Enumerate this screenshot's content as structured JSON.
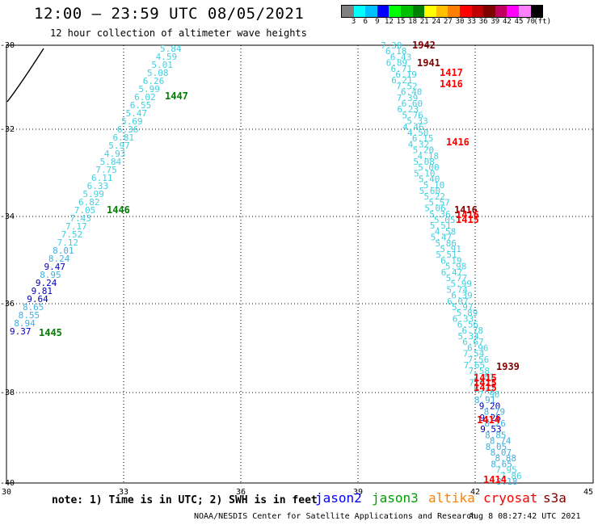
{
  "header": {
    "title": "12:00 – 23:59 UTC 08/05/2021",
    "subtitle": "12 hour collection of altimeter wave heights"
  },
  "colorbar": {
    "colors": [
      "#808080",
      "#00ffff",
      "#00c0ff",
      "#0000ff",
      "#00ff00",
      "#00c000",
      "#008000",
      "#ffff00",
      "#ffc000",
      "#ff8000",
      "#ff0000",
      "#c00000",
      "#800000",
      "#c00060",
      "#ff00ff",
      "#ff80ff",
      "#000000"
    ],
    "labels": [
      "3",
      "6",
      "9",
      "12",
      "15",
      "18",
      "21",
      "24",
      "27",
      "30",
      "33",
      "36",
      "39",
      "42",
      "45",
      "70",
      "(ft)"
    ]
  },
  "axes": {
    "x_ticks": [
      "30",
      "33",
      "36",
      "39",
      "42",
      "45"
    ],
    "y_ticks": [
      "-30",
      "-32",
      "-34",
      "-36",
      "-38",
      "-40"
    ]
  },
  "track_west": {
    "heights": [
      {
        "v": "5.84",
        "c": "#40d0e0"
      },
      {
        "v": "4.59",
        "c": "#40d0e0"
      },
      {
        "v": "5.01",
        "c": "#40d0e0"
      },
      {
        "v": "5.08",
        "c": "#40d0e0"
      },
      {
        "v": "6.26",
        "c": "#40d0e0"
      },
      {
        "v": "5.99",
        "c": "#40d0e0"
      },
      {
        "v": "6.02",
        "c": "#40d0e0"
      },
      {
        "v": "6.55",
        "c": "#40d0e0"
      },
      {
        "v": "5.47",
        "c": "#40d0e0"
      },
      {
        "v": "5.69",
        "c": "#40d0e0"
      },
      {
        "v": "6.36",
        "c": "#40d0e0"
      },
      {
        "v": "6.81",
        "c": "#40d0e0"
      },
      {
        "v": "5.97",
        "c": "#40d0e0"
      },
      {
        "v": "4.93",
        "c": "#40d0e0"
      },
      {
        "v": "5.84",
        "c": "#40d0e0"
      },
      {
        "v": "7.75",
        "c": "#40d0e0"
      },
      {
        "v": "6.11",
        "c": "#40d0e0"
      },
      {
        "v": "6.33",
        "c": "#40d0e0"
      },
      {
        "v": "5.99",
        "c": "#40d0e0"
      },
      {
        "v": "6.82",
        "c": "#40d0e0"
      },
      {
        "v": "7.05",
        "c": "#40d0e0"
      },
      {
        "v": "7.43",
        "c": "#40d0e0"
      },
      {
        "v": "7.17",
        "c": "#40d0e0"
      },
      {
        "v": "7.52",
        "c": "#40d0e0"
      },
      {
        "v": "7.12",
        "c": "#40d0e0"
      },
      {
        "v": "8.01",
        "c": "#40b0e0"
      },
      {
        "v": "8.24",
        "c": "#40b0e0"
      },
      {
        "v": "9.47",
        "c": "#0000c0"
      },
      {
        "v": "8.95",
        "c": "#40b0e0"
      },
      {
        "v": "9.24",
        "c": "#0000c0"
      },
      {
        "v": "9.81",
        "c": "#0000c0"
      },
      {
        "v": "9.64",
        "c": "#0000c0"
      },
      {
        "v": "8.65",
        "c": "#40b0e0"
      },
      {
        "v": "8.55",
        "c": "#40b0e0"
      },
      {
        "v": "8.94",
        "c": "#40b0e0"
      },
      {
        "v": "9.37",
        "c": "#0000c0"
      }
    ],
    "times": [
      {
        "t": "1447",
        "c": "#008000"
      },
      {
        "t": "1446",
        "c": "#008000"
      },
      {
        "t": "1445",
        "c": "#008000"
      }
    ]
  },
  "track_east": {
    "heights": [
      {
        "v": "7.30",
        "c": "#40d0e0"
      },
      {
        "v": "6.18",
        "c": "#40d0e0"
      },
      {
        "v": "6.43",
        "c": "#40d0e0"
      },
      {
        "v": "6.89",
        "c": "#40d0e0"
      },
      {
        "v": "6.71",
        "c": "#40d0e0"
      },
      {
        "v": "6.19",
        "c": "#40d0e0"
      },
      {
        "v": "6.21",
        "c": "#40d0e0"
      },
      {
        "v": "7.52",
        "c": "#40d0e0"
      },
      {
        "v": "6.40",
        "c": "#40d0e0"
      },
      {
        "v": "7.39",
        "c": "#40d0e0"
      },
      {
        "v": "6.60",
        "c": "#40d0e0"
      },
      {
        "v": "6.23",
        "c": "#40d0e0"
      },
      {
        "v": "5.76",
        "c": "#40d0e0"
      },
      {
        "v": "5.33",
        "c": "#40d0e0"
      },
      {
        "v": "4.46",
        "c": "#40d0e0"
      },
      {
        "v": "4.50",
        "c": "#40d0e0"
      },
      {
        "v": "6.15",
        "c": "#40d0e0"
      },
      {
        "v": "4.32",
        "c": "#40d0e0"
      },
      {
        "v": "5.20",
        "c": "#40d0e0"
      },
      {
        "v": "4.18",
        "c": "#40d0e0"
      },
      {
        "v": "5.08",
        "c": "#40d0e0"
      },
      {
        "v": "5.00",
        "c": "#40d0e0"
      },
      {
        "v": "5.10",
        "c": "#40d0e0"
      },
      {
        "v": "5.40",
        "c": "#40d0e0"
      },
      {
        "v": "5.10",
        "c": "#40d0e0"
      },
      {
        "v": "5.60",
        "c": "#40d0e0"
      },
      {
        "v": "5.22",
        "c": "#40d0e0"
      },
      {
        "v": "5.57",
        "c": "#40d0e0"
      },
      {
        "v": "5.06",
        "c": "#40d0e0"
      },
      {
        "v": "5.36",
        "c": "#40d0e0"
      },
      {
        "v": "5.05",
        "c": "#40d0e0"
      },
      {
        "v": "5.51",
        "c": "#40d0e0"
      },
      {
        "v": "4.58",
        "c": "#40d0e0"
      },
      {
        "v": "5.47",
        "c": "#40d0e0"
      },
      {
        "v": "5.86",
        "c": "#40d0e0"
      },
      {
        "v": "5.91",
        "c": "#40d0e0"
      },
      {
        "v": "5.51",
        "c": "#40d0e0"
      },
      {
        "v": "6.19",
        "c": "#40d0e0"
      },
      {
        "v": "5.98",
        "c": "#40d0e0"
      },
      {
        "v": "6.47",
        "c": "#40d0e0"
      },
      {
        "v": "5.77",
        "c": "#40d0e0"
      },
      {
        "v": "5.99",
        "c": "#40d0e0"
      },
      {
        "v": "5.74",
        "c": "#40d0e0"
      },
      {
        "v": "6.39",
        "c": "#40d0e0"
      },
      {
        "v": "6.07",
        "c": "#40d0e0"
      },
      {
        "v": "5.97",
        "c": "#40d0e0"
      },
      {
        "v": "5.89",
        "c": "#40d0e0"
      },
      {
        "v": "6.33",
        "c": "#40d0e0"
      },
      {
        "v": "6.56",
        "c": "#40d0e0"
      },
      {
        "v": "6.78",
        "c": "#40d0e0"
      },
      {
        "v": "5.34",
        "c": "#40d0e0"
      },
      {
        "v": "6.67",
        "c": "#40d0e0"
      },
      {
        "v": "6.96",
        "c": "#40d0e0"
      },
      {
        "v": "7.54",
        "c": "#40d0e0"
      },
      {
        "v": "7.56",
        "c": "#40d0e0"
      },
      {
        "v": "7.65",
        "c": "#40d0e0"
      },
      {
        "v": "7.58",
        "c": "#40d0e0"
      },
      {
        "v": "7.81",
        "c": "#40d0e0"
      },
      {
        "v": "7.67",
        "c": "#40d0e0"
      },
      {
        "v": "8.32",
        "c": "#40b0e0"
      },
      {
        "v": "7.96",
        "c": "#40d0e0"
      },
      {
        "v": "8.91",
        "c": "#40b0e0"
      },
      {
        "v": "9.20",
        "c": "#0000c0"
      },
      {
        "v": "8.79",
        "c": "#40b0e0"
      },
      {
        "v": "9.26",
        "c": "#0000c0"
      },
      {
        "v": "8.26",
        "c": "#40b0e0"
      },
      {
        "v": "9.53",
        "c": "#0000c0"
      },
      {
        "v": "8.85",
        "c": "#40b0e0"
      },
      {
        "v": "8.74",
        "c": "#40b0e0"
      },
      {
        "v": "8.05",
        "c": "#40b0e0"
      },
      {
        "v": "8.07",
        "c": "#40b0e0"
      },
      {
        "v": "8.88",
        "c": "#40b0e0"
      },
      {
        "v": "8.65",
        "c": "#40b0e0"
      },
      {
        "v": "7.95",
        "c": "#40d0e0"
      },
      {
        "v": "7.86",
        "c": "#40d0e0"
      },
      {
        "v": "8.18",
        "c": "#40b0e0"
      }
    ],
    "times": [
      {
        "t": "1942",
        "c": "#800000"
      },
      {
        "t": "1941",
        "c": "#800000"
      },
      {
        "t": "1417",
        "c": "#ff0000"
      },
      {
        "t": "1416",
        "c": "#ff0000"
      },
      {
        "t": "1416",
        "c": "#ff0000"
      },
      {
        "t": "1416",
        "c": "#800000"
      },
      {
        "t": "1416",
        "c": "#ff0000"
      },
      {
        "t": "1415",
        "c": "#ff0000"
      },
      {
        "t": "1939",
        "c": "#800000"
      },
      {
        "t": "1415",
        "c": "#ff0000"
      },
      {
        "t": "1415",
        "c": "#ff0000"
      },
      {
        "t": "1415",
        "c": "#ff0000"
      },
      {
        "t": "1414",
        "c": "#ff0000"
      },
      {
        "t": "1414",
        "c": "#ff0000"
      }
    ]
  },
  "note": "note: 1) Time is in UTC; 2) SWH is in feet",
  "legend": [
    {
      "label": "jason2",
      "color": "#0000ff"
    },
    {
      "label": "jason3",
      "color": "#00a000"
    },
    {
      "label": "altika",
      "color": "#ff8000"
    },
    {
      "label": "cryosat",
      "color": "#ff0000"
    },
    {
      "label": "s3a",
      "color": "#800000"
    }
  ],
  "footer": {
    "credit": "NOAA/NESDIS Center for Satellite Applications and Research",
    "timestamp": "Aug  8 08:27:42 UTC 2021"
  }
}
